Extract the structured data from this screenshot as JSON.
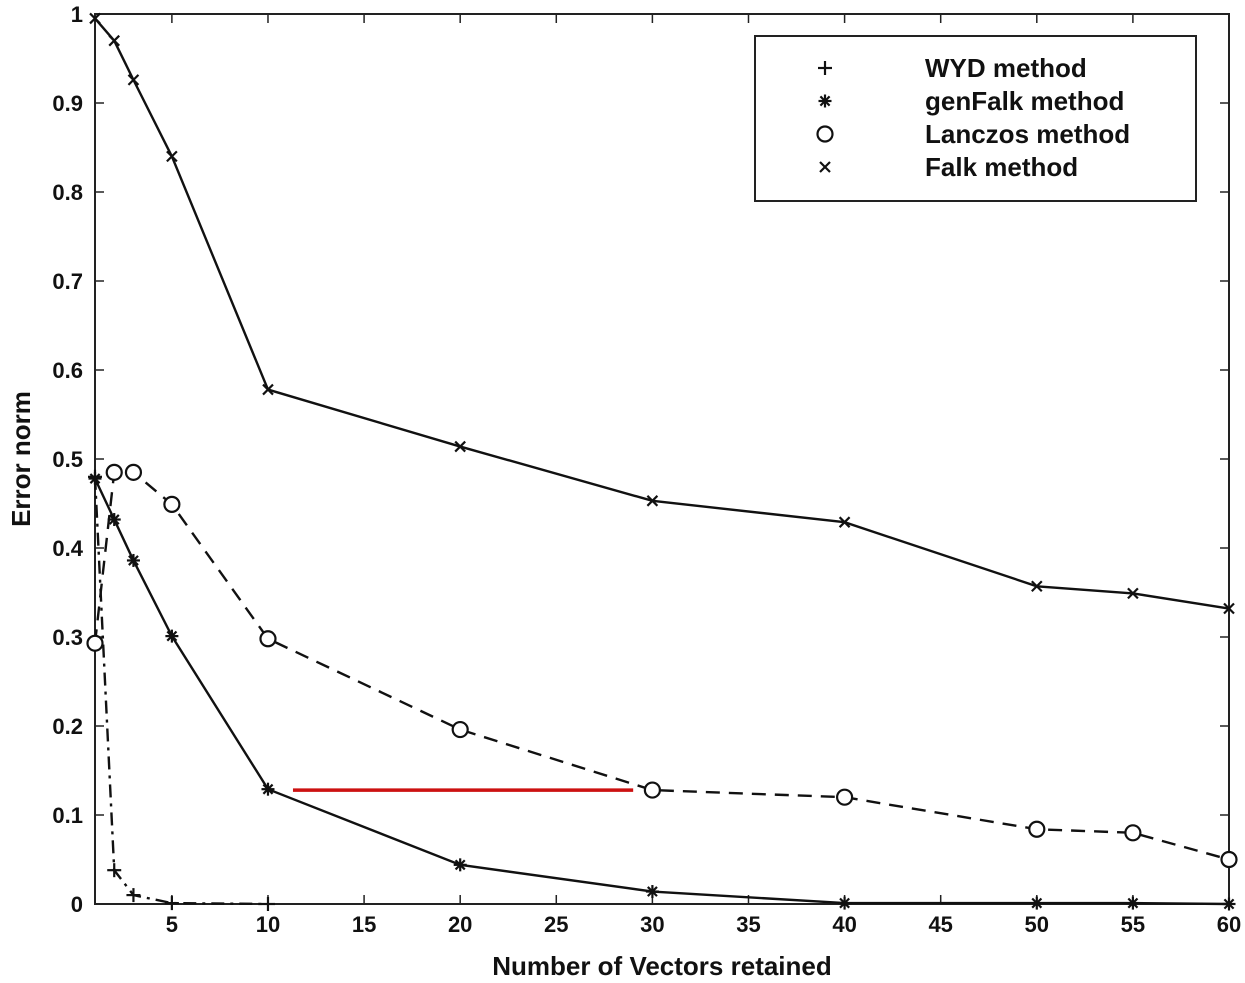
{
  "chart_data": {
    "type": "line",
    "title": "",
    "xlabel": "Number of Vectors retained",
    "ylabel": "Error norm",
    "xlim": [
      1,
      60
    ],
    "ylim": [
      0,
      1
    ],
    "xticks": [
      5,
      10,
      15,
      20,
      25,
      30,
      35,
      40,
      45,
      50,
      55,
      60
    ],
    "yticks": [
      0,
      0.1,
      0.2,
      0.3,
      0.4,
      0.5,
      0.6,
      0.7,
      0.8,
      0.9,
      1
    ],
    "xtick_labels": [
      "5",
      "10",
      "15",
      "20",
      "25",
      "30",
      "35",
      "40",
      "45",
      "50",
      "55",
      "60"
    ],
    "ytick_labels": [
      "0",
      "0.1",
      "0.2",
      "0.3",
      "0.4",
      "0.5",
      "0.6",
      "0.7",
      "0.8",
      "0.9",
      "1"
    ],
    "grid": false,
    "legend_position": "top-right",
    "series": [
      {
        "name": "WYD method",
        "marker": "plus",
        "line_style": "dashdot",
        "x": [
          1,
          2,
          3,
          5,
          10
        ],
        "y": [
          0.48,
          0.038,
          0.01,
          0.001,
          0.0
        ]
      },
      {
        "name": "genFalk method",
        "marker": "asterisk",
        "line_style": "solid",
        "x": [
          1,
          2,
          3,
          5,
          10,
          20,
          30,
          40,
          50,
          55,
          60
        ],
        "y": [
          0.478,
          0.432,
          0.386,
          0.301,
          0.129,
          0.044,
          0.014,
          0.001,
          0.001,
          0.001,
          0.0
        ]
      },
      {
        "name": "Lanczos method",
        "marker": "circle",
        "line_style": "dashed",
        "x": [
          1,
          2,
          3,
          5,
          10,
          20,
          30,
          40,
          50,
          55,
          60
        ],
        "y": [
          0.293,
          0.485,
          0.485,
          0.449,
          0.298,
          0.196,
          0.128,
          0.12,
          0.084,
          0.08,
          0.05
        ]
      },
      {
        "name": "Falk method",
        "marker": "cross",
        "line_style": "solid",
        "x": [
          1,
          2,
          3,
          5,
          10,
          20,
          30,
          40,
          50,
          55,
          60
        ],
        "y": [
          0.995,
          0.97,
          0.926,
          0.84,
          0.578,
          0.514,
          0.453,
          0.429,
          0.357,
          0.349,
          0.332
        ]
      }
    ],
    "annotations": [
      {
        "type": "hline",
        "color": "#cc1111",
        "y": 0.128,
        "x_start": 11.3,
        "x_end": 29
      }
    ]
  }
}
